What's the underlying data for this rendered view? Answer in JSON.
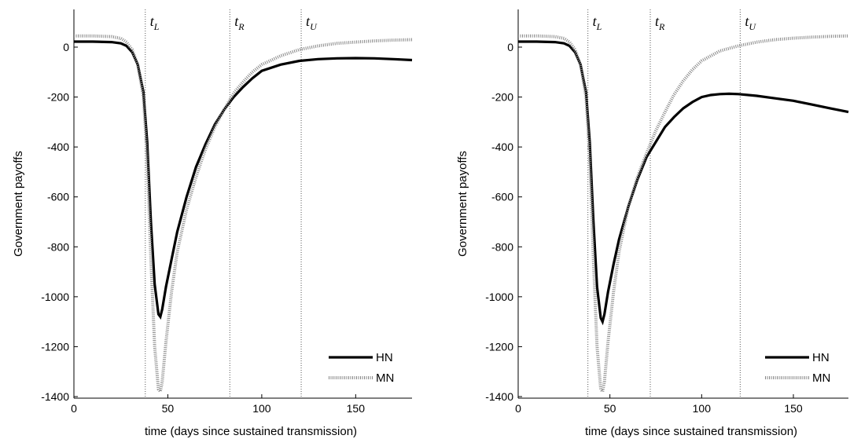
{
  "chart_data": [
    {
      "type": "line",
      "xlabel": "time (days since sustained transmission)",
      "ylabel": "Government payoffs",
      "xlim": [
        0,
        180
      ],
      "ylim": [
        -1400,
        150
      ],
      "xticks": [
        0,
        50,
        100,
        150
      ],
      "yticks": [
        0,
        -200,
        -400,
        -600,
        -800,
        -1000,
        -1200,
        -1400
      ],
      "grid": false,
      "legend": "bottom-right",
      "markers": [
        {
          "label": "t",
          "sub": "L",
          "x": 38
        },
        {
          "label": "t",
          "sub": "R",
          "x": 83
        },
        {
          "label": "t",
          "sub": "U",
          "x": 121
        }
      ],
      "series": [
        {
          "name": "HN",
          "style": "solid-thick",
          "x": [
            0,
            10,
            20,
            25,
            28,
            31,
            34,
            37,
            39,
            41,
            43,
            45,
            46,
            47,
            49,
            52,
            55,
            60,
            65,
            70,
            75,
            80,
            85,
            90,
            95,
            100,
            110,
            120,
            130,
            140,
            150,
            160,
            170,
            180
          ],
          "y": [
            22,
            22,
            20,
            15,
            5,
            -20,
            -70,
            -180,
            -380,
            -700,
            -950,
            -1070,
            -1080,
            -1050,
            -960,
            -850,
            -740,
            -600,
            -480,
            -390,
            -310,
            -250,
            -200,
            -160,
            -125,
            -95,
            -70,
            -55,
            -48,
            -45,
            -44,
            -45,
            -48,
            -52
          ]
        },
        {
          "name": "MN",
          "style": "dotted",
          "x": [
            0,
            10,
            20,
            25,
            28,
            31,
            34,
            37,
            39,
            41,
            43,
            45,
            46,
            47,
            49,
            52,
            55,
            60,
            65,
            70,
            75,
            80,
            85,
            90,
            95,
            100,
            110,
            120,
            130,
            140,
            150,
            160,
            170,
            180
          ],
          "y": [
            45,
            45,
            42,
            35,
            20,
            -10,
            -70,
            -200,
            -450,
            -850,
            -1200,
            -1370,
            -1380,
            -1340,
            -1180,
            -980,
            -820,
            -650,
            -520,
            -410,
            -320,
            -250,
            -185,
            -140,
            -100,
            -70,
            -35,
            -10,
            5,
            15,
            20,
            25,
            28,
            30
          ]
        }
      ]
    },
    {
      "type": "line",
      "xlabel": "time (days since sustained transmission)",
      "ylabel": "Government payoffs",
      "xlim": [
        0,
        180
      ],
      "ylim": [
        -1400,
        150
      ],
      "xticks": [
        0,
        50,
        100,
        150
      ],
      "yticks": [
        0,
        -200,
        -400,
        -600,
        -800,
        -1000,
        -1200,
        -1400
      ],
      "grid": false,
      "legend": "bottom-right",
      "markers": [
        {
          "label": "t",
          "sub": "L",
          "x": 38
        },
        {
          "label": "t",
          "sub": "R",
          "x": 72
        },
        {
          "label": "t",
          "sub": "U",
          "x": 121
        }
      ],
      "series": [
        {
          "name": "HN",
          "style": "solid-thick",
          "x": [
            0,
            10,
            20,
            25,
            28,
            31,
            34,
            37,
            39,
            41,
            43,
            45,
            46,
            47,
            49,
            52,
            55,
            60,
            65,
            70,
            75,
            80,
            85,
            90,
            95,
            100,
            105,
            110,
            115,
            120,
            130,
            140,
            150,
            160,
            170,
            180
          ],
          "y": [
            22,
            22,
            20,
            15,
            5,
            -20,
            -70,
            -180,
            -380,
            -700,
            -960,
            -1085,
            -1100,
            -1070,
            -980,
            -870,
            -770,
            -640,
            -530,
            -440,
            -380,
            -320,
            -280,
            -245,
            -220,
            -200,
            -192,
            -188,
            -187,
            -188,
            -195,
            -205,
            -215,
            -230,
            -245,
            -260
          ]
        },
        {
          "name": "MN",
          "style": "dotted",
          "x": [
            0,
            10,
            20,
            25,
            28,
            31,
            34,
            37,
            39,
            41,
            43,
            45,
            46,
            47,
            49,
            52,
            55,
            60,
            65,
            70,
            75,
            80,
            85,
            90,
            95,
            100,
            110,
            120,
            130,
            140,
            150,
            160,
            170,
            180
          ],
          "y": [
            45,
            45,
            42,
            35,
            20,
            -10,
            -70,
            -200,
            -450,
            -850,
            -1200,
            -1370,
            -1380,
            -1340,
            -1180,
            -980,
            -820,
            -640,
            -520,
            -425,
            -335,
            -260,
            -190,
            -135,
            -90,
            -55,
            -15,
            5,
            20,
            30,
            36,
            40,
            43,
            45
          ]
        }
      ]
    }
  ]
}
